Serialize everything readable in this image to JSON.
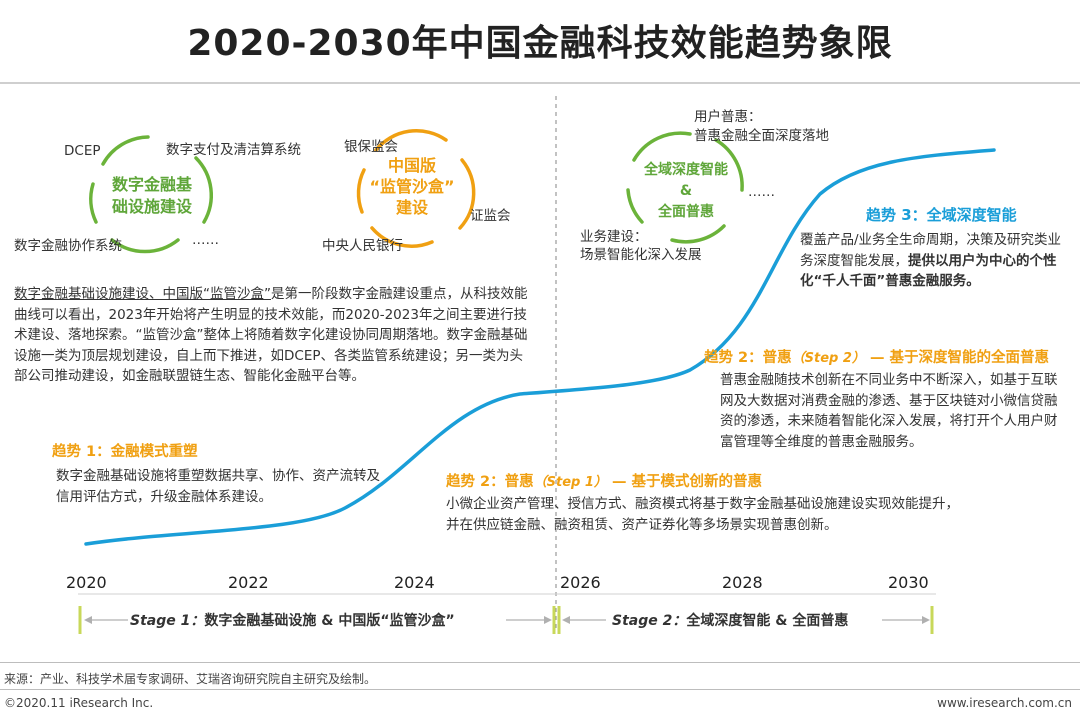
{
  "title": "2020-2030年中国金融科技效能趋势象限",
  "stage1_circle": {
    "center_text": [
      "数字金融基",
      "础设施建设"
    ],
    "labels": {
      "dcep": "DCEP",
      "payment": "数字支付及清洁算系统",
      "collab": "数字金融协作系统",
      "dots": "……"
    }
  },
  "sandbox_circle": {
    "center_text": [
      "中国版",
      "“监管沙盒”",
      "建设"
    ],
    "labels": {
      "cbirc": "银保监会",
      "csrc": "证监会",
      "pboc": "中央人民银行"
    }
  },
  "stage2_circle": {
    "center_text": [
      "全域深度智能",
      "&",
      "全面普惠"
    ],
    "labels": {
      "user": [
        "用户普惠：",
        "普惠金融全面深度落地"
      ],
      "business": [
        "业务建设：",
        "场景智能化深入发展"
      ],
      "dots": "……"
    }
  },
  "intro_paragraph": {
    "underlined": "数字金融基础设施建设、中国版“监管沙盒”",
    "rest": "是第一阶段数字金融建设重点，从科技效能曲线可以看出，2023年开始将产生明显的技术效能，而2020-2023年之间主要进行技术建设、落地探索。“监管沙盒”整体上将随着数字化建设协同周期落地。数字金融基础设施一类为顶层规划建设，自上而下推进，如DCEP、各类监管系统建设；另一类为头部公司推动建设，如金融联盟链生态、智能化金融平台等。"
  },
  "trend1": {
    "prefix": "趋势 1：",
    "name": "金融模式重塑",
    "body": "数字金融基础设施将重塑数据共享、协作、资产流转及信用评估方式，升级金融体系建设。"
  },
  "trend2a": {
    "prefix": "趋势 2：",
    "name": "普惠",
    "step": "（Step 1）",
    "subtitle": " — 基于模式创新的普惠",
    "body": "小微企业资产管理、授信方式、融资模式将基于数字金融基础设施建设实现效能提升，并在供应链金融、融资租赁、资产证券化等多场景实现普惠创新。"
  },
  "trend2b": {
    "prefix": "趋势 2：",
    "name": "普惠",
    "step": "（Step 2）",
    "subtitle": " — 基于深度智能的全面普惠",
    "body": "普惠金融随技术创新在不同业务中不断深入，如基于互联网及大数据对消费金融的渗透、基于区块链对小微信贷融资的渗透，未来随着智能化深入发展，将打开个人用户财富管理等全维度的普惠金融服务。"
  },
  "trend3": {
    "prefix": "趋势 3：",
    "name": "全域深度智能",
    "body_plain": "覆盖产品/业务全生命周期，决策及研究类业务深度智能发展，",
    "body_bold": "提供以用户为中心的个性化“千人千面”普惠金融服务。"
  },
  "years": [
    "2020",
    "2022",
    "2024",
    "2026",
    "2028",
    "2030"
  ],
  "stages": [
    {
      "label": "Stage 1：",
      "text": "数字金融基础设施 & 中国版“监管沙盒”"
    },
    {
      "label": "Stage 2：",
      "text": "全域深度智能 & 全面普惠"
    }
  ],
  "footer": {
    "source": "来源：产业、科技学术届专家调研、艾瑞咨询研究院自主研究及绘制。",
    "copyright": "©2020.11 iResearch Inc.",
    "website": "www.iresearch.com.cn"
  },
  "colors": {
    "curve": "#1a9ed8",
    "green": "#6bb33a",
    "orange": "#f0a012",
    "bracket": "#c8d85a",
    "blue_text": "#1a9ed8"
  }
}
